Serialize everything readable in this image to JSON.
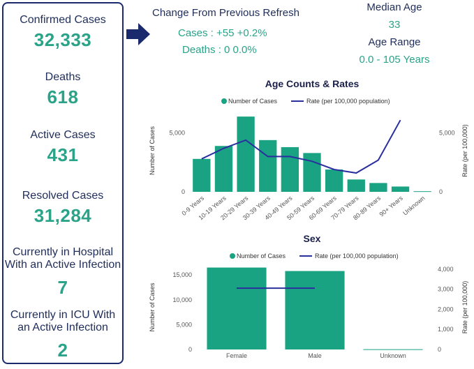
{
  "stats": [
    {
      "label": "Confirmed Cases",
      "value": "32,333"
    },
    {
      "label": "Deaths",
      "value": "618"
    },
    {
      "label": "Active Cases",
      "value": "431"
    },
    {
      "label": "Resolved Cases",
      "value": "31,284"
    },
    {
      "label_lines": [
        "Currently in Hospital",
        "With an Active Infection"
      ],
      "value": "7"
    },
    {
      "label_lines": [
        "Currently in ICU With",
        "an Active Infection"
      ],
      "value": "2"
    }
  ],
  "change": {
    "title": "Change From Previous Refresh",
    "cases": "Cases : +55 +0.2%",
    "deaths": "Deaths : 0 0.0%"
  },
  "median": {
    "label": "Median Age",
    "value": "33"
  },
  "range": {
    "label": "Age Range",
    "value": "0.0 - 105 Years"
  },
  "colors": {
    "teal": "#1aa383",
    "navy": "#2a2f9e",
    "text": "#1f2d5a",
    "value": "#2aa389"
  },
  "chart_data": [
    {
      "type": "bar",
      "title": "Age Counts & Rates",
      "legend": [
        "Number of Cases",
        "Rate (per 100,000 population)"
      ],
      "categories": [
        "0-9 Years",
        "10-19 Years",
        "20-29 Years",
        "30-39 Years",
        "40-49 Years",
        "50-59 Years",
        "60-69 Years",
        "70-79 Years",
        "80-89 Years",
        "90+ Years",
        "Unknown"
      ],
      "series": [
        {
          "name": "Number of Cases",
          "type": "bar",
          "axis": "left",
          "values": [
            2800,
            3900,
            6400,
            4400,
            3800,
            3300,
            1900,
            1050,
            750,
            450,
            50
          ]
        },
        {
          "name": "Rate (per 100,000 population)",
          "type": "line",
          "axis": "right",
          "values": [
            2800,
            3700,
            4400,
            3000,
            3000,
            2600,
            1900,
            1600,
            2700,
            6100,
            null
          ]
        }
      ],
      "ylabel": "Number of Cases",
      "y2label": "Rate (per 100,000)",
      "ylim": [
        0,
        7000
      ],
      "y2lim": [
        0,
        7000
      ],
      "yticks": [
        0,
        5000
      ],
      "ytick_labels": [
        "0",
        "5,000"
      ],
      "y2ticks": [
        0,
        5000
      ],
      "y2tick_labels": [
        "0",
        "5,000"
      ]
    },
    {
      "type": "bar",
      "title": "Sex",
      "legend": [
        "Number of Cases",
        "Rate (per 100,000 population)"
      ],
      "categories": [
        "Female",
        "Male",
        "Unknown"
      ],
      "series": [
        {
          "name": "Number of Cases",
          "type": "bar",
          "axis": "left",
          "values": [
            16500,
            15800,
            50
          ]
        },
        {
          "name": "Rate (per 100,000 population)",
          "type": "line",
          "axis": "right",
          "values": [
            3050,
            3050,
            null
          ]
        }
      ],
      "ylabel": "Number of Cases",
      "y2label": "Rate (per 100,000)",
      "ylim": [
        0,
        17000
      ],
      "y2lim": [
        0,
        4200
      ],
      "yticks": [
        0,
        5000,
        10000,
        15000
      ],
      "ytick_labels": [
        "0",
        "5,000",
        "10,000",
        "15,000"
      ],
      "y2ticks": [
        0,
        1000,
        2000,
        3000,
        4000
      ],
      "y2tick_labels": [
        "0",
        "1,000",
        "2,000",
        "3,000",
        "4,000"
      ]
    }
  ]
}
